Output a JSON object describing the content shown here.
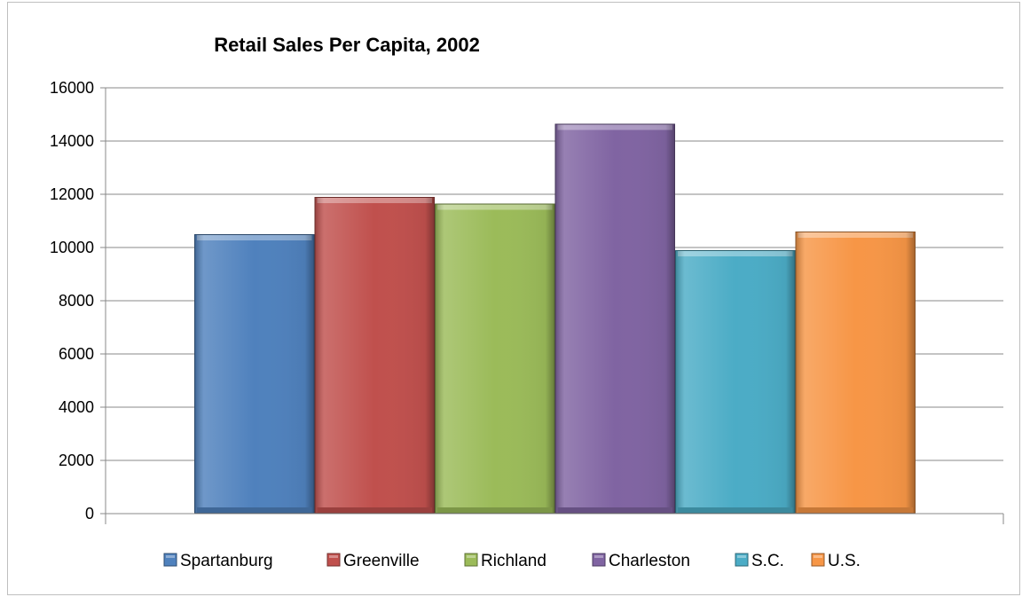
{
  "chart_data": {
    "type": "bar",
    "title": "Retail Sales Per Capita, 2002",
    "xlabel": "",
    "ylabel": "",
    "ylim": [
      0,
      16000
    ],
    "yticks": [
      0,
      2000,
      4000,
      6000,
      8000,
      10000,
      12000,
      14000,
      16000
    ],
    "grid": true,
    "legend_position": "bottom",
    "categories": [
      ""
    ],
    "series": [
      {
        "name": "Spartanburg",
        "values": [
          10500
        ],
        "color": "#4F81BD"
      },
      {
        "name": "Greenville",
        "values": [
          11900
        ],
        "color": "#C0504D"
      },
      {
        "name": "Richland",
        "values": [
          11650
        ],
        "color": "#9BBB59"
      },
      {
        "name": "Charleston",
        "values": [
          14650
        ],
        "color": "#8064A2"
      },
      {
        "name": "S.C.",
        "values": [
          9900
        ],
        "color": "#4BACC6"
      },
      {
        "name": "U.S.",
        "values": [
          10600
        ],
        "color": "#F79646"
      }
    ]
  }
}
